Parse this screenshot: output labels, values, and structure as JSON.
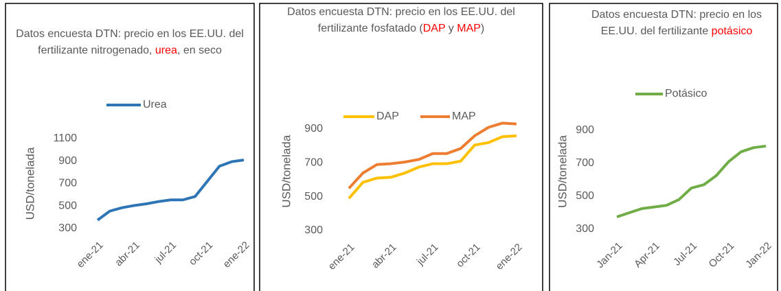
{
  "chart_data": [
    {
      "type": "line",
      "title": [
        {
          "text": "Datos encuesta DTN: precio en los EE.UU. del fertilizante nitrogenado, "
        },
        {
          "text": "urea",
          "color": "#ff0000"
        },
        {
          "text": ", en seco"
        }
      ],
      "y_label": "USD/tonelada",
      "categories": [
        "ene-21",
        null,
        null,
        "abr-21",
        null,
        null,
        "jul-21",
        null,
        null,
        "oct-21",
        null,
        null,
        "ene-22"
      ],
      "series": [
        {
          "name": "Urea",
          "color": "#2e75b6",
          "values": [
            375,
            455,
            485,
            505,
            520,
            540,
            555,
            555,
            585,
            720,
            855,
            895,
            910
          ]
        }
      ],
      "ylim": [
        300,
        1100
      ],
      "yticks": [
        300,
        500,
        700,
        900,
        1100
      ]
    },
    {
      "type": "line",
      "title": [
        {
          "text": "Datos encuesta DTN: precio en los EE.UU. del fertilizante fosfatado ("
        },
        {
          "text": "DAP",
          "color": "#ff0000"
        },
        {
          "text": " y "
        },
        {
          "text": "MAP",
          "color": "#ff0000"
        },
        {
          "text": ")"
        }
      ],
      "y_label": "USD/tonelada",
      "categories": [
        "ene-21",
        null,
        null,
        "abr-21",
        null,
        null,
        "jul-21",
        null,
        null,
        "oct-21",
        null,
        null,
        "ene-22"
      ],
      "series": [
        {
          "name": "DAP",
          "color": "#ffc000",
          "values": [
            490,
            585,
            610,
            615,
            640,
            675,
            695,
            695,
            710,
            805,
            820,
            855,
            860
          ]
        },
        {
          "name": "MAP",
          "color": "#ed7d31",
          "values": [
            550,
            640,
            690,
            695,
            705,
            720,
            755,
            755,
            785,
            860,
            910,
            935,
            930
          ]
        }
      ],
      "ylim": [
        300,
        1000
      ],
      "yticks": [
        300,
        500,
        700,
        900
      ]
    },
    {
      "type": "line",
      "title": [
        {
          "text": "Datos encuesta DTN: precio en los  EE.UU. del fertilizante "
        },
        {
          "text": "potásico",
          "color": "#ff0000"
        }
      ],
      "y_label": "USD/tonelada",
      "categories": [
        "Jan-21",
        null,
        null,
        "Apr-21",
        null,
        null,
        "Jul-21",
        null,
        null,
        "Oct-21",
        null,
        null,
        "Jan-22"
      ],
      "series": [
        {
          "name": "Potásico",
          "color": "#70ad47",
          "values": [
            375,
            400,
            425,
            435,
            445,
            480,
            550,
            570,
            625,
            710,
            770,
            795,
            805
          ]
        }
      ],
      "ylim": [
        300,
        1000
      ],
      "yticks": [
        300,
        500,
        700,
        900
      ]
    }
  ]
}
